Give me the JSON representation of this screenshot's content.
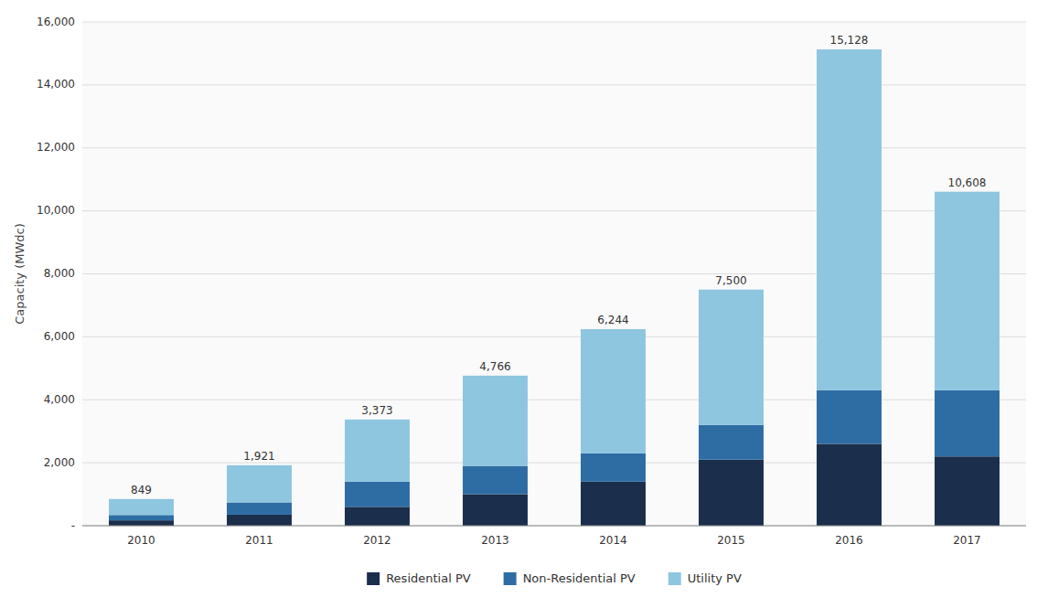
{
  "chart_data": {
    "type": "bar",
    "stacked": true,
    "categories": [
      "2010",
      "2011",
      "2012",
      "2013",
      "2014",
      "2015",
      "2016",
      "2017"
    ],
    "series": [
      {
        "name": "Residential PV",
        "color": "#1b2e4b",
        "values": [
          170,
          350,
          600,
          1000,
          1400,
          2100,
          2600,
          2200
        ]
      },
      {
        "name": "Non-Residential PV",
        "color": "#2e6da4",
        "values": [
          170,
          390,
          800,
          900,
          900,
          1100,
          1700,
          2100
        ]
      },
      {
        "name": "Utility PV",
        "color": "#8ec6e0",
        "values": [
          509,
          1181,
          1973,
          2866,
          3944,
          4300,
          10828,
          6308
        ]
      }
    ],
    "totals": {
      "values": [
        849,
        1921,
        3373,
        4766,
        6244,
        7500,
        15128,
        10608
      ],
      "value_labels": [
        "849",
        "1,921",
        "3,373",
        "4,766",
        "6,244",
        "7,500",
        "15,128",
        "10,608"
      ]
    },
    "ylabel": "Capacity (MWdc)",
    "ylim": [
      0,
      16000
    ],
    "yticks": [
      {
        "value": 0,
        "label": "-"
      },
      {
        "value": 2000,
        "label": "2,000"
      },
      {
        "value": 4000,
        "label": "4,000"
      },
      {
        "value": 6000,
        "label": "6,000"
      },
      {
        "value": 8000,
        "label": "8,000"
      },
      {
        "value": 10000,
        "label": "10,000"
      },
      {
        "value": 12000,
        "label": "12,000"
      },
      {
        "value": 14000,
        "label": "14,000"
      },
      {
        "value": 16000,
        "label": "16,000"
      }
    ],
    "grid": true,
    "legend": "bottom"
  }
}
